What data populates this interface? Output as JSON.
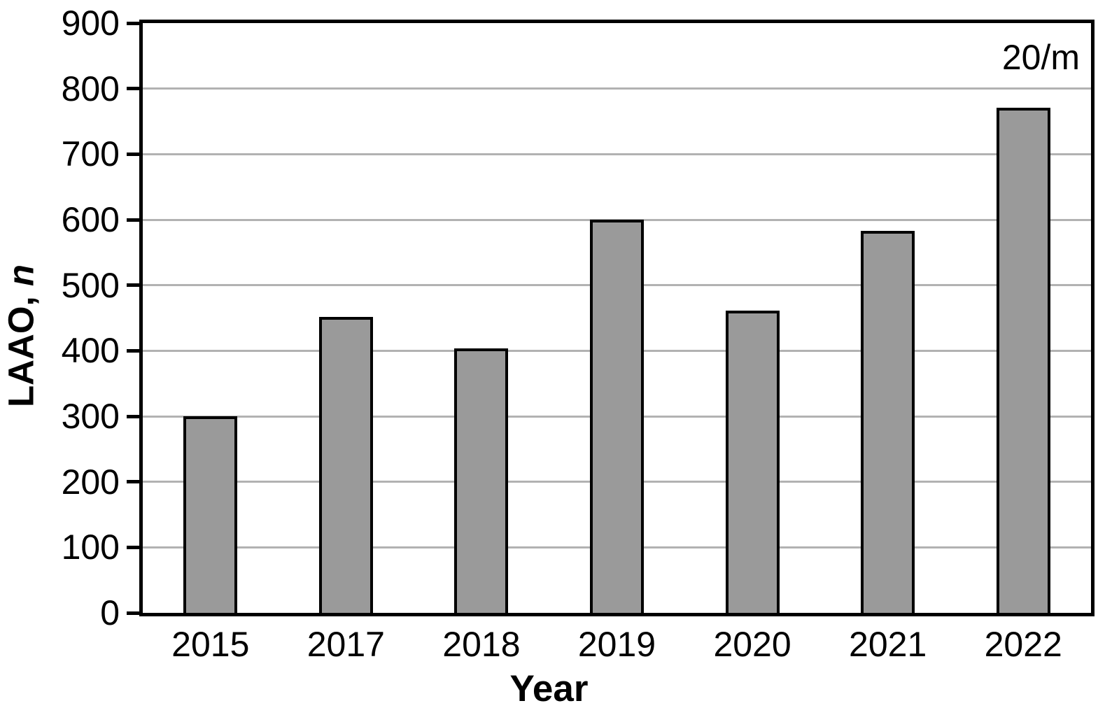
{
  "chart_data": {
    "type": "bar",
    "categories": [
      "2015",
      "2017",
      "2018",
      "2019",
      "2020",
      "2021",
      "2022"
    ],
    "values": [
      300,
      452,
      404,
      600,
      461,
      583,
      771
    ],
    "title": "",
    "xlabel": "Year",
    "ylabel": "LAAO, n",
    "ylabel_prefix": "LAAO, ",
    "ylabel_italic": "n",
    "annotation": "20/m",
    "ylim": [
      0,
      900
    ],
    "yticks": [
      0,
      100,
      200,
      300,
      400,
      500,
      600,
      700,
      800,
      900
    ],
    "grid": "horizontal",
    "legend": "none",
    "colors": {
      "bar_fill": "#9a9a9a",
      "bar_border": "#000000",
      "gridline": "#b2b2b2",
      "axis": "#000000",
      "text": "#000000"
    }
  }
}
